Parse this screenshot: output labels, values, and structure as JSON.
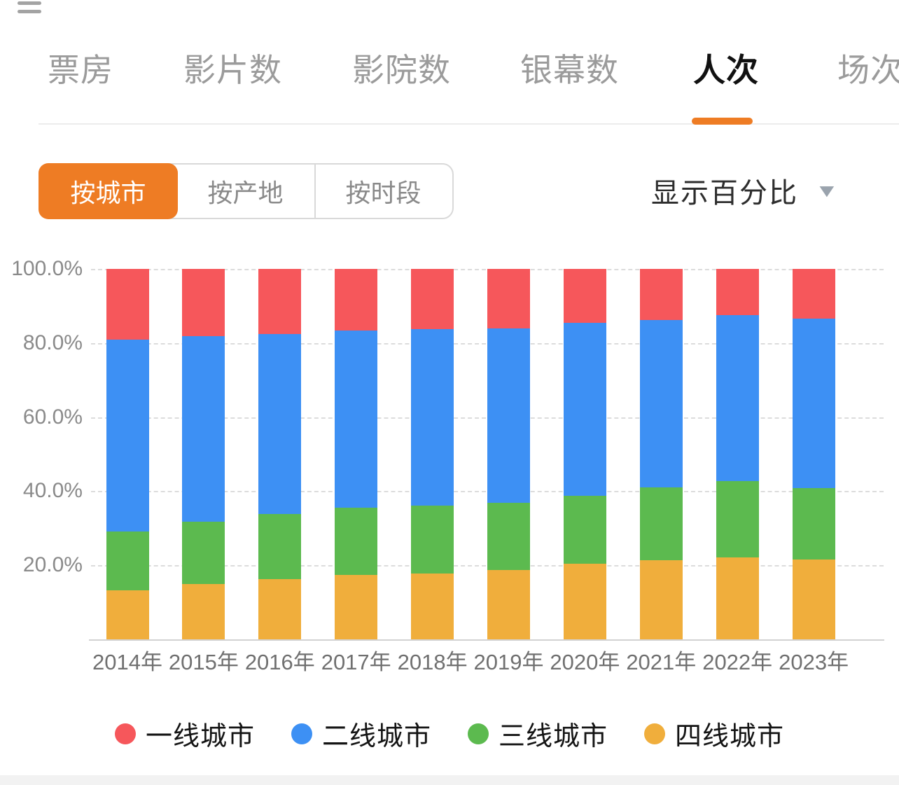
{
  "header": {
    "tabs": [
      {
        "label": "票房",
        "active": false
      },
      {
        "label": "影片数",
        "active": false
      },
      {
        "label": "影院数",
        "active": false
      },
      {
        "label": "银幕数",
        "active": false
      },
      {
        "label": "人次",
        "active": true
      },
      {
        "label": "场次",
        "active": false
      }
    ]
  },
  "controls": {
    "segments": [
      {
        "label": "按城市",
        "active": true
      },
      {
        "label": "按产地",
        "active": false
      },
      {
        "label": "按时段",
        "active": false
      }
    ],
    "display_mode_label": "显示百分比",
    "caret_icon": "▼"
  },
  "accent_color": "#ee7c24",
  "chart_data": {
    "type": "bar",
    "stacked": true,
    "unit": "percent",
    "title": "人次 按城市 显示百分比",
    "categories": [
      "2014年",
      "2015年",
      "2016年",
      "2017年",
      "2018年",
      "2019年",
      "2020年",
      "2021年",
      "2022年",
      "2023年"
    ],
    "series": [
      {
        "name": "四线城市",
        "color": "#f0ae3c",
        "values": [
          13.2,
          14.9,
          16.2,
          17.3,
          17.8,
          18.7,
          20.5,
          21.4,
          22.1,
          21.5
        ]
      },
      {
        "name": "三线城市",
        "color": "#5cba4f",
        "values": [
          15.9,
          16.9,
          17.6,
          18.3,
          18.4,
          18.2,
          18.3,
          19.6,
          20.6,
          19.4
        ]
      },
      {
        "name": "二线城市",
        "color": "#3d90f4",
        "values": [
          51.8,
          50.1,
          48.7,
          47.7,
          47.5,
          47.0,
          46.7,
          45.2,
          44.9,
          45.7
        ]
      },
      {
        "name": "一线城市",
        "color": "#f6575b",
        "values": [
          19.1,
          18.1,
          17.5,
          16.7,
          16.3,
          16.1,
          14.5,
          13.8,
          12.4,
          13.4
        ]
      }
    ],
    "y_ticks": [
      {
        "label": "100.0%",
        "value": 100
      },
      {
        "label": "80.0%",
        "value": 80
      },
      {
        "label": "60.0%",
        "value": 60
      },
      {
        "label": "40.0%",
        "value": 40
      },
      {
        "label": "20.0%",
        "value": 20
      }
    ],
    "ylim": [
      0,
      100
    ],
    "grid": "dashed horizontal",
    "legend_position": "bottom",
    "legend": [
      {
        "name": "一线城市",
        "color": "#f6575b"
      },
      {
        "name": "二线城市",
        "color": "#3d90f4"
      },
      {
        "name": "三线城市",
        "color": "#5cba4f"
      },
      {
        "name": "四线城市",
        "color": "#f0ae3c"
      }
    ]
  }
}
